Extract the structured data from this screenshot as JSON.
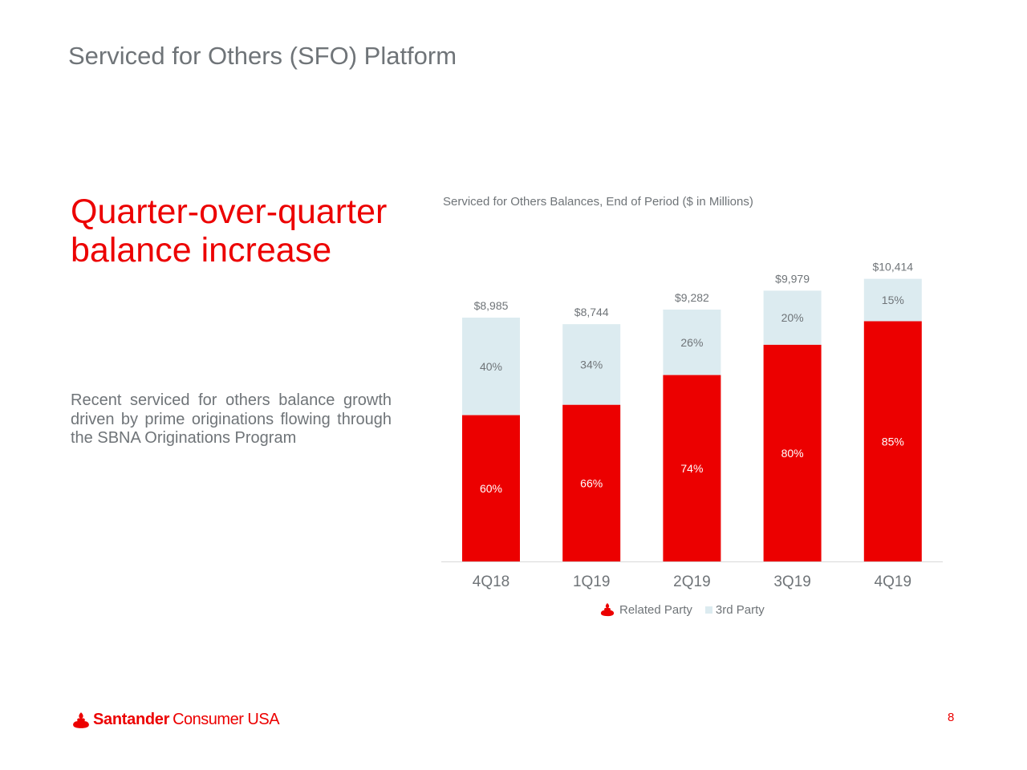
{
  "slide": {
    "title": "Serviced for Others (SFO) Platform",
    "headline_line1": "Quarter-over-quarter",
    "headline_line2": "balance increase",
    "body_text": "Recent serviced for others balance growth driven by prime originations flowing through the SBNA Originations Program",
    "page_number": "8"
  },
  "logo": {
    "brand": "Santander",
    "suffix": "Consumer USA",
    "icon": "santander-flame-icon"
  },
  "colors": {
    "related_party": "#ec0000",
    "third_party": "#dcebf0",
    "text_gray": "#6f7478",
    "axis": "#d9d9d9"
  },
  "chart_data": {
    "type": "bar",
    "stacked": true,
    "title": "Serviced for Others Balances, End of Period ($ in Millions)",
    "xlabel": "",
    "ylabel": "",
    "ylim": [
      0,
      10414
    ],
    "grid": false,
    "legend_position": "bottom-center",
    "categories": [
      "4Q18",
      "1Q19",
      "2Q19",
      "3Q19",
      "4Q19"
    ],
    "totals": [
      8985,
      8744,
      9282,
      9979,
      10414
    ],
    "total_labels": [
      "$8,985",
      "$8,744",
      "$9,282",
      "$9,979",
      "$10,414"
    ],
    "series": [
      {
        "name": "Related Party",
        "color": "#ec0000",
        "share_pct": [
          60,
          66,
          74,
          80,
          85
        ],
        "labels": [
          "60%",
          "66%",
          "74%",
          "80%",
          "85%"
        ]
      },
      {
        "name": "3rd Party",
        "color": "#dcebf0",
        "share_pct": [
          40,
          34,
          26,
          20,
          15
        ],
        "labels": [
          "40%",
          "34%",
          "26%",
          "20%",
          "15%"
        ]
      }
    ]
  }
}
